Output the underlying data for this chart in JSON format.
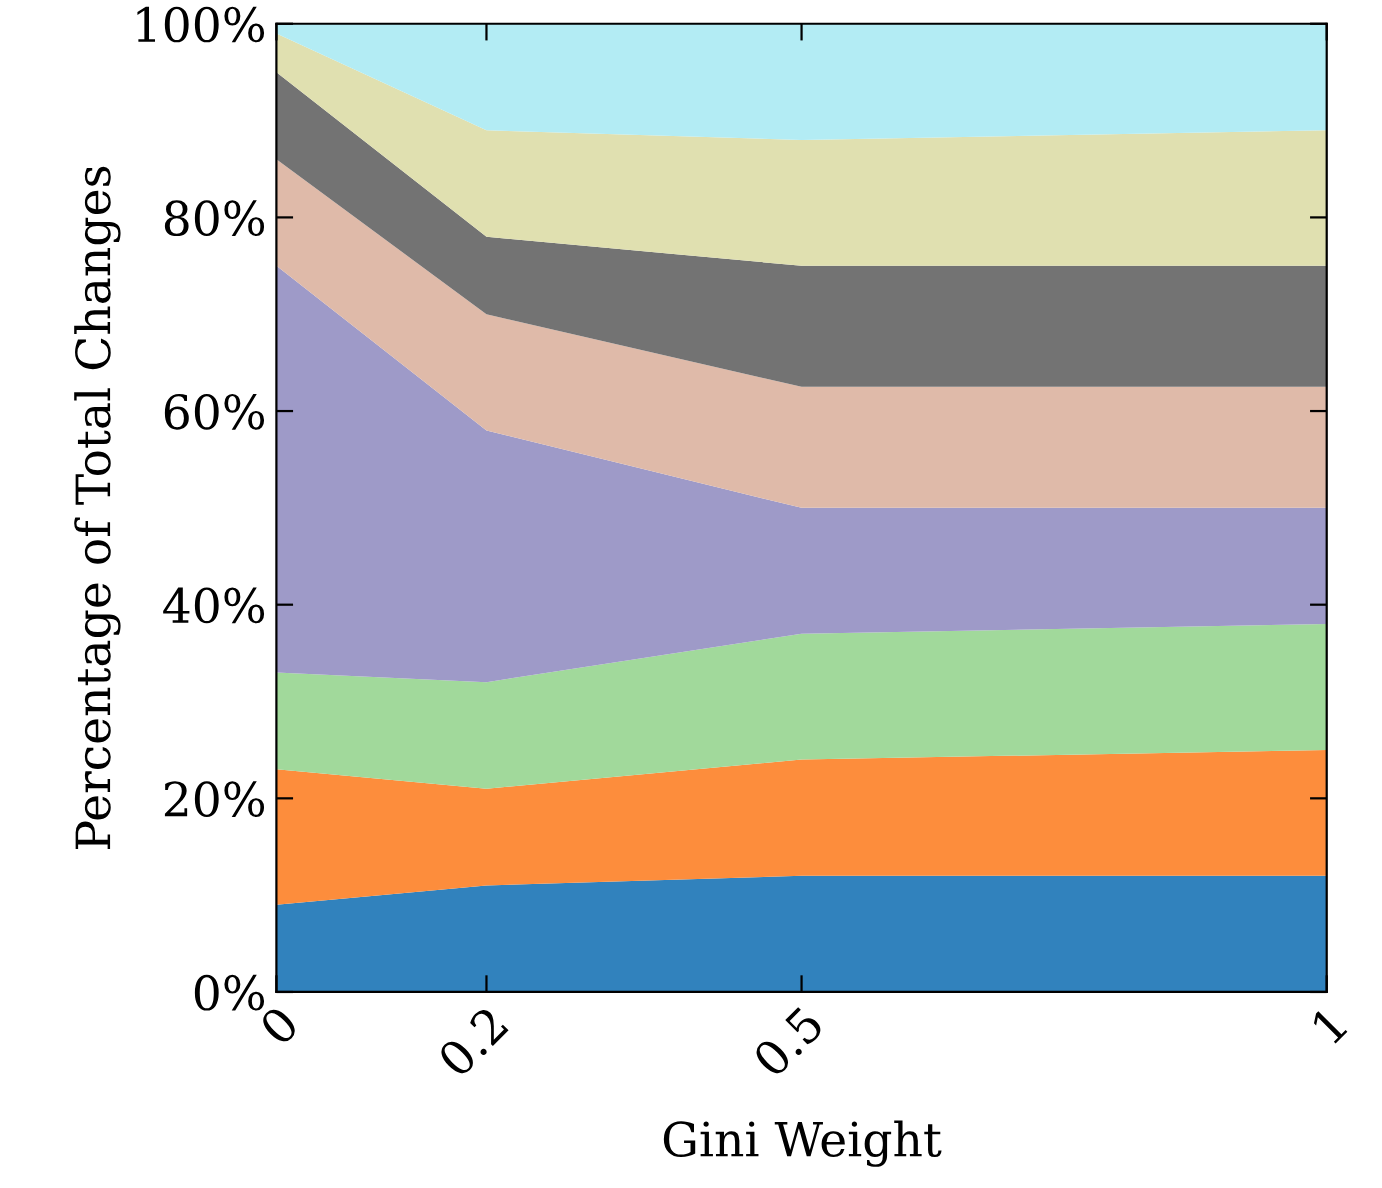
{
  "chart_data": {
    "type": "area",
    "stacked": true,
    "xlabel": "Gini Weight",
    "ylabel": "Percentage of Total Changes",
    "x": [
      0,
      0.2,
      0.5,
      1
    ],
    "xlim": [
      0,
      1
    ],
    "xticks": [
      0,
      0.2,
      0.5,
      1
    ],
    "ylim": [
      0,
      100
    ],
    "yticks": [
      {
        "value": 0,
        "label": "0%"
      },
      {
        "value": 20,
        "label": "20%"
      },
      {
        "value": 40,
        "label": "40%"
      },
      {
        "value": 60,
        "label": "60%"
      },
      {
        "value": 80,
        "label": "80%"
      },
      {
        "value": 100,
        "label": "100%"
      }
    ],
    "grid": false,
    "legend": false,
    "series": [
      {
        "color": "#3182bd",
        "values": [
          9,
          11,
          12,
          12
        ]
      },
      {
        "color": "#fd8d3c",
        "values": [
          14,
          10,
          12,
          13
        ]
      },
      {
        "color": "#a1d99b",
        "values": [
          10,
          11,
          13,
          13
        ]
      },
      {
        "color": "#9e9ac8",
        "values": [
          42,
          26,
          13,
          12
        ]
      },
      {
        "color": "#dfbaa9",
        "values": [
          11,
          12,
          12.5,
          12.5
        ]
      },
      {
        "color": "#737373",
        "values": [
          9,
          8,
          12.5,
          12.5
        ]
      },
      {
        "color": "#e0e0b0",
        "values": [
          4,
          11,
          13,
          14
        ]
      },
      {
        "color": "#b3ecf4",
        "values": [
          1,
          11,
          12,
          11
        ]
      }
    ]
  }
}
